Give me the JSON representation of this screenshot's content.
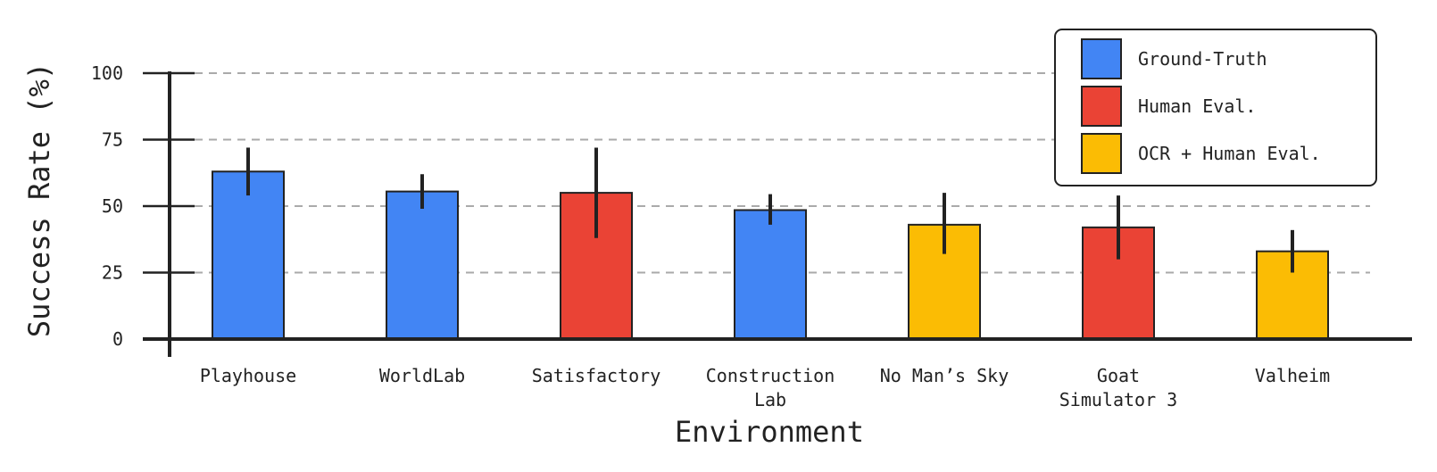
{
  "chart_data": {
    "type": "bar",
    "xlabel": "Environment",
    "ylabel": "Success Rate (%)",
    "ylim": [
      0,
      100
    ],
    "yticks": [
      0,
      25,
      50,
      75,
      100
    ],
    "grid": "horizontal dashed",
    "legend_position": "top-right",
    "categories": [
      [
        "Playhouse"
      ],
      [
        "WorldLab"
      ],
      [
        "Satisfactory"
      ],
      [
        "Construction",
        "Lab"
      ],
      [
        "No Man’s Sky"
      ],
      [
        "Goat",
        "Simulator 3"
      ],
      [
        "Valheim"
      ]
    ],
    "values": [
      63,
      55.5,
      55,
      48.5,
      43,
      42,
      33
    ],
    "error_low": [
      54,
      49,
      38,
      43,
      32,
      30,
      25
    ],
    "error_high": [
      72,
      62,
      72,
      54.5,
      55,
      54,
      41
    ],
    "method": [
      "Ground-Truth",
      "Ground-Truth",
      "Human Eval.",
      "Ground-Truth",
      "OCR + Human Eval.",
      "Human Eval.",
      "OCR + Human Eval."
    ],
    "legend": [
      {
        "name": "Ground-Truth",
        "color": "#4285F4"
      },
      {
        "name": "Human Eval.",
        "color": "#EA4335"
      },
      {
        "name": "OCR + Human Eval.",
        "color": "#FBBC04"
      }
    ]
  }
}
